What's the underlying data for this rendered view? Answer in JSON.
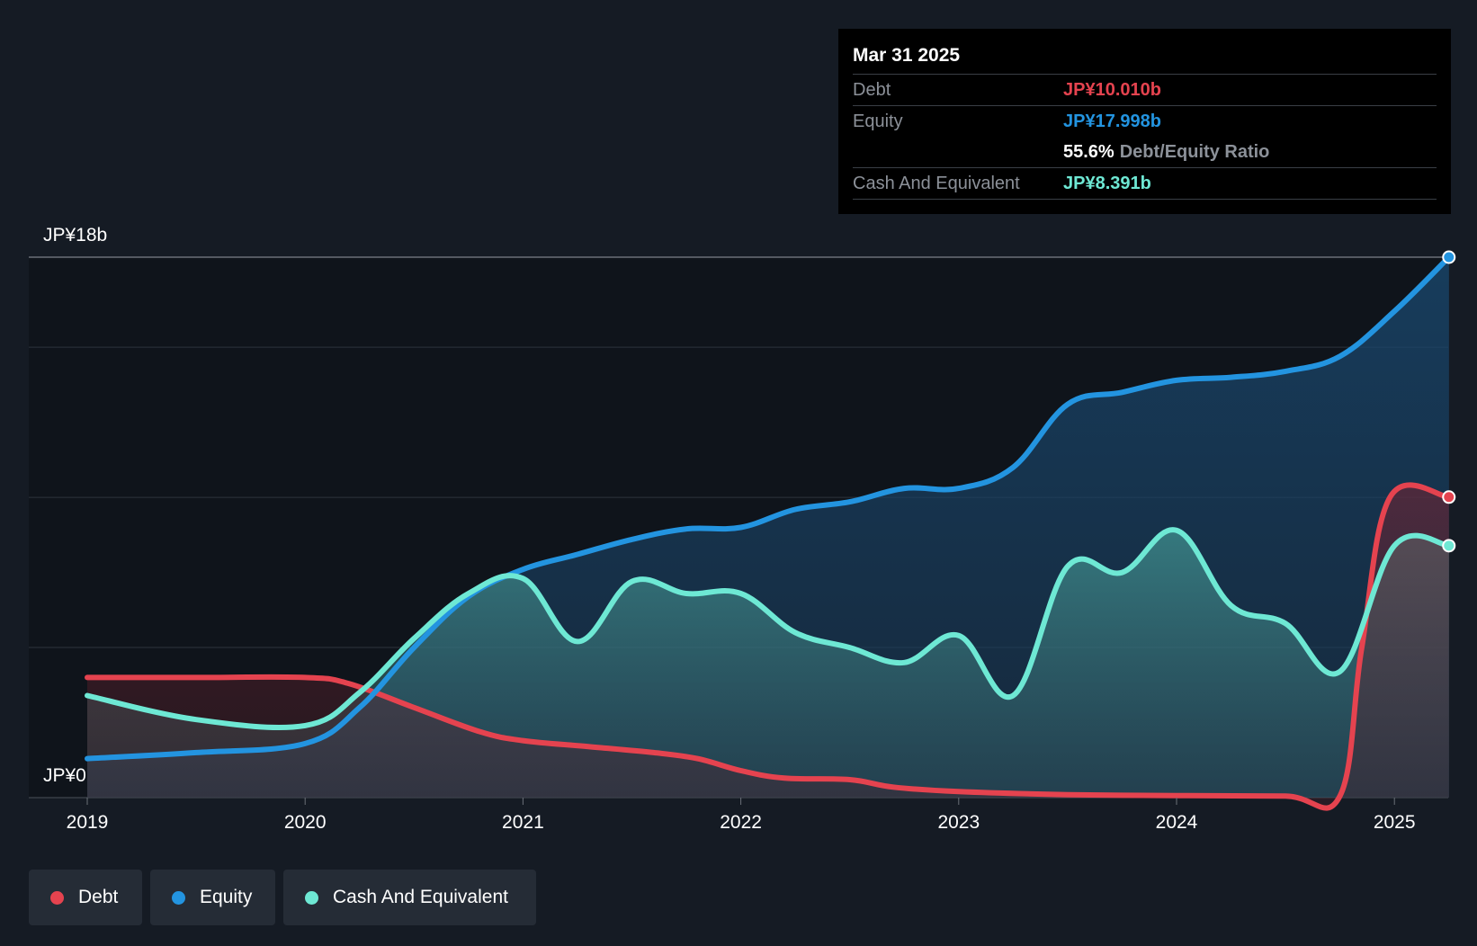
{
  "tooltip": {
    "date": "Mar 31 2025",
    "debt_label": "Debt",
    "debt_value": "JP¥10.010b",
    "equity_label": "Equity",
    "equity_value": "JP¥17.998b",
    "ratio_value": "55.6%",
    "ratio_label": "Debt/Equity Ratio",
    "cash_label": "Cash And Equivalent",
    "cash_value": "JP¥8.391b"
  },
  "axis": {
    "y_top_label": "JP¥18b",
    "y_bottom_label": "JP¥0"
  },
  "legend": {
    "debt": "Debt",
    "equity": "Equity",
    "cash": "Cash And Equivalent"
  },
  "colors": {
    "debt": "#e5434f",
    "equity": "#2394e0",
    "cash": "#6ee8d4",
    "background": "#151b24"
  },
  "chart_data": {
    "type": "area",
    "title": "",
    "xlabel": "",
    "ylabel": "",
    "ylim": [
      0,
      18
    ],
    "y_unit": "JP¥ billions",
    "x_ticks": [
      "2019",
      "2020",
      "2021",
      "2022",
      "2023",
      "2024",
      "2025"
    ],
    "gridlines_y": [
      0,
      5,
      10,
      15,
      18
    ],
    "series": [
      {
        "name": "Debt",
        "key": "debt",
        "points": [
          [
            2019.0,
            4.0
          ],
          [
            2019.5,
            4.0
          ],
          [
            2020.0,
            4.0
          ],
          [
            2020.2,
            3.8
          ],
          [
            2020.5,
            3.0
          ],
          [
            2020.8,
            2.2
          ],
          [
            2021.0,
            1.9
          ],
          [
            2021.3,
            1.7
          ],
          [
            2021.6,
            1.5
          ],
          [
            2021.8,
            1.3
          ],
          [
            2022.0,
            0.9
          ],
          [
            2022.2,
            0.65
          ],
          [
            2022.5,
            0.6
          ],
          [
            2022.7,
            0.35
          ],
          [
            2023.0,
            0.2
          ],
          [
            2023.5,
            0.1
          ],
          [
            2024.0,
            0.07
          ],
          [
            2024.5,
            0.05
          ],
          [
            2024.75,
            0.05
          ],
          [
            2024.85,
            5.0
          ],
          [
            2024.98,
            10.01
          ],
          [
            2025.25,
            10.01
          ]
        ]
      },
      {
        "name": "Equity",
        "key": "equity",
        "points": [
          [
            2019.0,
            1.3
          ],
          [
            2019.5,
            1.5
          ],
          [
            2020.0,
            1.8
          ],
          [
            2020.25,
            3.0
          ],
          [
            2020.5,
            5.0
          ],
          [
            2020.75,
            6.7
          ],
          [
            2021.0,
            7.6
          ],
          [
            2021.25,
            8.1
          ],
          [
            2021.5,
            8.6
          ],
          [
            2021.75,
            8.95
          ],
          [
            2022.0,
            9.0
          ],
          [
            2022.25,
            9.6
          ],
          [
            2022.5,
            9.85
          ],
          [
            2022.75,
            10.3
          ],
          [
            2023.0,
            10.3
          ],
          [
            2023.25,
            11.0
          ],
          [
            2023.5,
            13.1
          ],
          [
            2023.75,
            13.5
          ],
          [
            2024.0,
            13.9
          ],
          [
            2024.25,
            14.0
          ],
          [
            2024.5,
            14.2
          ],
          [
            2024.75,
            14.7
          ],
          [
            2025.0,
            16.2
          ],
          [
            2025.25,
            18.0
          ]
        ]
      },
      {
        "name": "Cash And Equivalent",
        "key": "cash",
        "points": [
          [
            2019.0,
            3.4
          ],
          [
            2019.5,
            2.6
          ],
          [
            2020.0,
            2.4
          ],
          [
            2020.25,
            3.5
          ],
          [
            2020.5,
            5.3
          ],
          [
            2020.75,
            6.8
          ],
          [
            2021.0,
            7.3
          ],
          [
            2021.25,
            5.2
          ],
          [
            2021.5,
            7.2
          ],
          [
            2021.75,
            6.8
          ],
          [
            2022.0,
            6.8
          ],
          [
            2022.25,
            5.5
          ],
          [
            2022.5,
            5.0
          ],
          [
            2022.75,
            4.5
          ],
          [
            2023.0,
            5.4
          ],
          [
            2023.25,
            3.4
          ],
          [
            2023.5,
            7.7
          ],
          [
            2023.75,
            7.5
          ],
          [
            2024.0,
            8.9
          ],
          [
            2024.25,
            6.4
          ],
          [
            2024.5,
            5.8
          ],
          [
            2024.75,
            4.2
          ],
          [
            2025.0,
            8.391
          ],
          [
            2025.25,
            8.391
          ]
        ]
      }
    ],
    "legend": "bottom-left"
  }
}
